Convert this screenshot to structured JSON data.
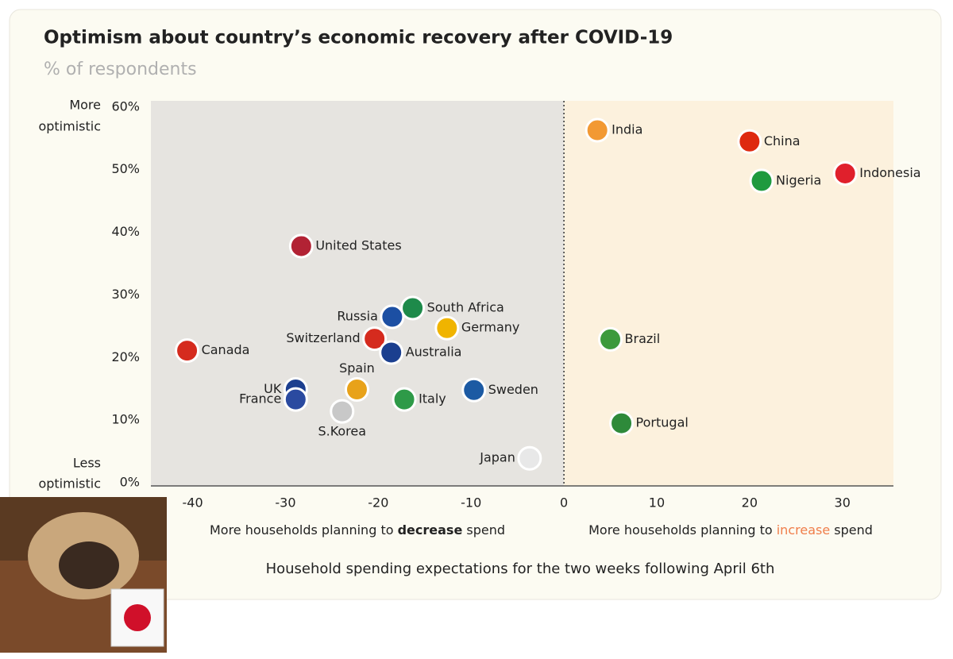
{
  "chart_data": {
    "type": "scatter",
    "title": "Optimism about country’s economic recovery after COVID-19",
    "subtitle": "% of respondents",
    "y_top_label": [
      "More",
      "optimistic"
    ],
    "y_bottom_label": [
      "Less",
      "optimistic"
    ],
    "x_label_left": [
      "More households planning to ",
      "decrease",
      " spend"
    ],
    "x_label_right": [
      "More households planning to ",
      "increase",
      " spend"
    ],
    "x_title": "Household spending expectations for the two weeks following April 6th",
    "labels": [
      "India",
      "China",
      "Indonesia",
      "Nigeria",
      "United States",
      "South Africa",
      "Russia",
      "Germany",
      "Switzerland",
      "Brazil",
      "Australia",
      "Canada",
      "Spain",
      "Sweden",
      "UK",
      "France",
      "Italy",
      "S.Korea",
      "Portugal",
      "Japan"
    ],
    "x": [
      3.6,
      20,
      30.3,
      21.3,
      -28.3,
      -16.3,
      -18.5,
      -12.6,
      -20.4,
      5,
      -18.6,
      -40.6,
      -22.3,
      -9.7,
      -28.9,
      -28.9,
      -17.2,
      -23.9,
      6.2,
      -3.7
    ],
    "y": [
      56.3,
      54.5,
      49.4,
      48.2,
      37.8,
      27.9,
      26.5,
      24.7,
      23,
      22.9,
      20.8,
      21.1,
      14.9,
      14.8,
      14.9,
      13.3,
      13.3,
      11.4,
      9.5,
      3.9
    ],
    "colors": [
      "#f29933",
      "#de2910",
      "#e0202c",
      "#1e9a3e",
      "#b22234",
      "#1e8a4a",
      "#1c4fa3",
      "#f0b400",
      "#d52b1e",
      "#3c9a3c",
      "#1b3f8f",
      "#d52b1e",
      "#e8a21a",
      "#1c5aa3",
      "#1c3f8f",
      "#2a4aa0",
      "#2e9a48",
      "#c8c8c8",
      "#2e8a3a",
      "#e8e8e8"
    ],
    "xlim": [
      -44.5,
      35.5
    ],
    "xticks": [
      -40,
      -30,
      -20,
      -10,
      0,
      10,
      20,
      30
    ],
    "ylim": [
      0,
      61
    ],
    "yticks": [
      {
        "value": 0,
        "label": "0%"
      },
      {
        "value": 10,
        "label": "10%"
      },
      {
        "value": 20,
        "label": "20%"
      },
      {
        "value": 30,
        "label": "30%"
      },
      {
        "value": 40,
        "label": "40%"
      },
      {
        "value": 50,
        "label": "50%"
      },
      {
        "value": 60,
        "label": "60%"
      }
    ],
    "accent_colors": {
      "decrease": "#222222",
      "increase": "#f07d4a"
    }
  }
}
